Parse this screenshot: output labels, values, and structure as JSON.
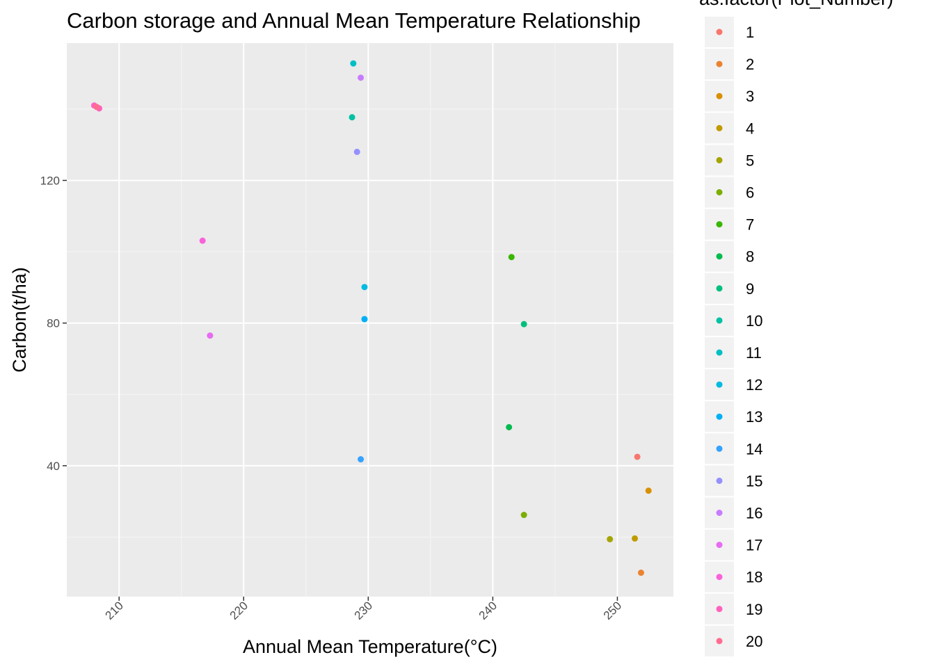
{
  "chart_data": {
    "type": "scatter",
    "title": "Carbon storage and Annual Mean Temperature Relationship",
    "xlabel": "Annual Mean Temperature(°C)",
    "ylabel": "Carbon(t/ha)",
    "xlim": [
      205.8,
      254.5
    ],
    "ylim": [
      3.3,
      158.5
    ],
    "x_ticks": [
      210,
      220,
      230,
      240,
      250
    ],
    "y_ticks": [
      40,
      80,
      120
    ],
    "x_tick_labels": [
      "210",
      "220",
      "230",
      "240",
      "250"
    ],
    "y_tick_labels": [
      "40",
      "80",
      "120"
    ],
    "x_tick_rotation": -45,
    "grid": true,
    "legend": {
      "title": "as.factor(Plot_Number)",
      "placement": "right"
    },
    "series": [
      {
        "name": "1",
        "color": "#F8766D",
        "points": [
          [
            251.6,
            42.5
          ]
        ]
      },
      {
        "name": "2",
        "color": "#EA8331",
        "points": [
          [
            251.9,
            10.0
          ]
        ]
      },
      {
        "name": "3",
        "color": "#D89000",
        "points": [
          [
            252.5,
            33.0
          ]
        ]
      },
      {
        "name": "4",
        "color": "#C09B00",
        "points": [
          [
            251.4,
            19.6
          ]
        ]
      },
      {
        "name": "5",
        "color": "#A3A500",
        "points": [
          [
            249.4,
            19.4
          ]
        ]
      },
      {
        "name": "6",
        "color": "#7CAE00",
        "points": [
          [
            242.5,
            26.2
          ]
        ]
      },
      {
        "name": "7",
        "color": "#39B600",
        "points": [
          [
            241.5,
            98.5
          ]
        ]
      },
      {
        "name": "8",
        "color": "#00BB4E",
        "points": [
          [
            241.3,
            50.8
          ]
        ]
      },
      {
        "name": "9",
        "color": "#00BF7D",
        "points": [
          [
            242.5,
            79.7
          ]
        ]
      },
      {
        "name": "10",
        "color": "#00C1A3",
        "points": [
          [
            228.7,
            137.7
          ]
        ]
      },
      {
        "name": "11",
        "color": "#00BFC4",
        "points": [
          [
            228.8,
            152.8
          ]
        ]
      },
      {
        "name": "12",
        "color": "#00BAE0",
        "points": [
          [
            229.7,
            90.1
          ],
          [
            229.7,
            81.1
          ]
        ]
      },
      {
        "name": "13",
        "color": "#00B0F6",
        "points": [
          [
            229.7,
            81.1
          ]
        ]
      },
      {
        "name": "14",
        "color": "#35A2FF",
        "points": [
          [
            229.4,
            41.8
          ]
        ]
      },
      {
        "name": "15",
        "color": "#9590FF",
        "points": [
          [
            229.1,
            128.0
          ]
        ]
      },
      {
        "name": "16",
        "color": "#C77CFF",
        "points": [
          [
            229.4,
            148.8
          ]
        ]
      },
      {
        "name": "17",
        "color": "#E76BF3",
        "points": [
          [
            217.3,
            76.5
          ]
        ]
      },
      {
        "name": "18",
        "color": "#FA62DB",
        "points": [
          [
            216.7,
            103.1
          ]
        ]
      },
      {
        "name": "19",
        "color": "#FF62BC",
        "points": [
          [
            208.0,
            141.0
          ],
          [
            208.4,
            140.2
          ]
        ]
      },
      {
        "name": "20",
        "color": "#FF6C91",
        "points": [
          [
            208.2,
            140.6
          ]
        ]
      }
    ]
  },
  "colors": {
    "panel_background": "#EBEBEB",
    "grid_major": "#FFFFFF",
    "grid_minor": "#F5F5F5",
    "legend_key_background": "#F2F2F2"
  }
}
